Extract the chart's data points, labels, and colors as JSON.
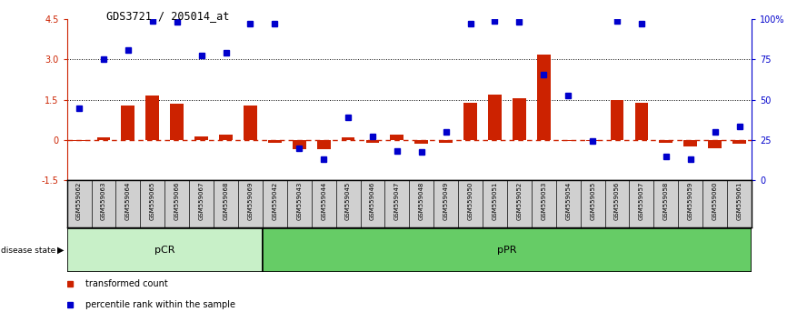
{
  "title": "GDS3721 / 205014_at",
  "samples": [
    "GSM559062",
    "GSM559063",
    "GSM559064",
    "GSM559065",
    "GSM559066",
    "GSM559067",
    "GSM559068",
    "GSM559069",
    "GSM559042",
    "GSM559043",
    "GSM559044",
    "GSM559045",
    "GSM559046",
    "GSM559047",
    "GSM559048",
    "GSM559049",
    "GSM559050",
    "GSM559051",
    "GSM559052",
    "GSM559053",
    "GSM559054",
    "GSM559055",
    "GSM559056",
    "GSM559057",
    "GSM559058",
    "GSM559059",
    "GSM559060",
    "GSM559061"
  ],
  "red_bars": [
    -0.05,
    0.1,
    1.3,
    1.65,
    1.35,
    0.15,
    0.2,
    1.3,
    -0.1,
    -0.35,
    -0.35,
    0.1,
    -0.1,
    0.2,
    -0.15,
    -0.1,
    1.4,
    1.7,
    1.55,
    3.2,
    -0.05,
    -0.05,
    1.5,
    1.4,
    -0.1,
    -0.25,
    -0.3,
    -0.15
  ],
  "blue_dots": [
    1.2,
    3.0,
    3.35,
    4.45,
    4.4,
    3.15,
    3.25,
    4.35,
    4.35,
    -0.3,
    -0.7,
    0.85,
    0.15,
    -0.4,
    -0.45,
    0.3,
    4.35,
    4.45,
    4.4,
    2.45,
    1.65,
    -0.05,
    4.45,
    4.35,
    -0.6,
    -0.7,
    0.3,
    0.5
  ],
  "pcr_count": 8,
  "bar_color": "#cc2200",
  "dot_color": "#0000cc",
  "pcr_color": "#c8f0c8",
  "ppr_color": "#66cc66",
  "legend_red": "transformed count",
  "legend_blue": "percentile rank within the sample",
  "ylim_left": [
    -1.5,
    4.5
  ],
  "ylim_right": [
    0,
    100
  ],
  "yticks_left": [
    -1.5,
    0,
    1.5,
    3.0,
    4.5
  ],
  "yticks_right": [
    0,
    25,
    50,
    75,
    100
  ],
  "hlines": [
    3.0,
    1.5
  ]
}
